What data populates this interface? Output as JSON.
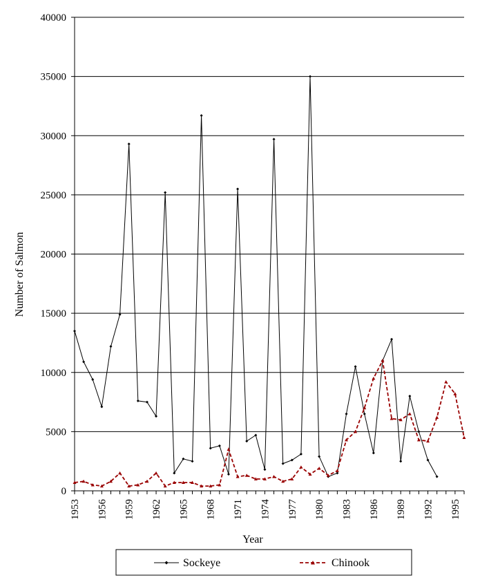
{
  "chart_data": {
    "type": "line",
    "title": "",
    "xlabel": "Year",
    "ylabel": "Number of Salmon",
    "ylim": [
      0,
      40000
    ],
    "yticks": [
      0,
      5000,
      10000,
      15000,
      20000,
      25000,
      30000,
      35000,
      40000
    ],
    "xlim": [
      1953,
      1996
    ],
    "xticks": [
      1953,
      1956,
      1959,
      1962,
      1965,
      1968,
      1971,
      1974,
      1977,
      1980,
      1983,
      1986,
      1989,
      1992,
      1995
    ],
    "grid": "horizontal",
    "legend_position": "bottom",
    "colors": {
      "sockeye": "#000000",
      "chinook": "#990000"
    },
    "series": [
      {
        "name": "Sockeye",
        "style": "solid-line-diamond-markers",
        "x": [
          1953,
          1954,
          1955,
          1956,
          1957,
          1958,
          1959,
          1960,
          1961,
          1962,
          1963,
          1964,
          1965,
          1966,
          1967,
          1968,
          1969,
          1970,
          1971,
          1972,
          1973,
          1974,
          1975,
          1976,
          1977,
          1978,
          1979,
          1980,
          1981,
          1982,
          1983,
          1984,
          1985,
          1986,
          1987,
          1988,
          1989,
          1990,
          1991,
          1992,
          1993
        ],
        "values": [
          13500,
          10900,
          9400,
          7100,
          12200,
          14900,
          29300,
          7600,
          7500,
          6300,
          25200,
          1500,
          2700,
          2500,
          31700,
          3600,
          3800,
          1400,
          25500,
          4200,
          4700,
          1800,
          29700,
          2300,
          2600,
          3100,
          35000,
          2900,
          1200,
          1500,
          6500,
          10500,
          6500,
          3200,
          11000,
          12800,
          2500,
          8000,
          5000,
          2600,
          1200
        ]
      },
      {
        "name": "Chinook",
        "style": "dashed-line-triangle-markers",
        "x": [
          1953,
          1954,
          1955,
          1956,
          1957,
          1958,
          1959,
          1960,
          1961,
          1962,
          1963,
          1964,
          1965,
          1966,
          1967,
          1968,
          1969,
          1970,
          1971,
          1972,
          1973,
          1974,
          1975,
          1976,
          1977,
          1978,
          1979,
          1980,
          1981,
          1982,
          1983,
          1984,
          1985,
          1986,
          1987,
          1988,
          1989,
          1990,
          1991,
          1992,
          1993,
          1994,
          1995,
          1996
        ],
        "values": [
          700,
          800,
          500,
          400,
          800,
          1500,
          400,
          500,
          800,
          1500,
          400,
          700,
          700,
          700,
          400,
          400,
          500,
          3500,
          1200,
          1300,
          1000,
          1000,
          1200,
          800,
          1000,
          2000,
          1400,
          1900,
          1300,
          1700,
          4300,
          5000,
          7000,
          9500,
          11000,
          6100,
          6000,
          6500,
          4300,
          4200,
          6200,
          9200,
          8200,
          4500
        ]
      }
    ]
  }
}
